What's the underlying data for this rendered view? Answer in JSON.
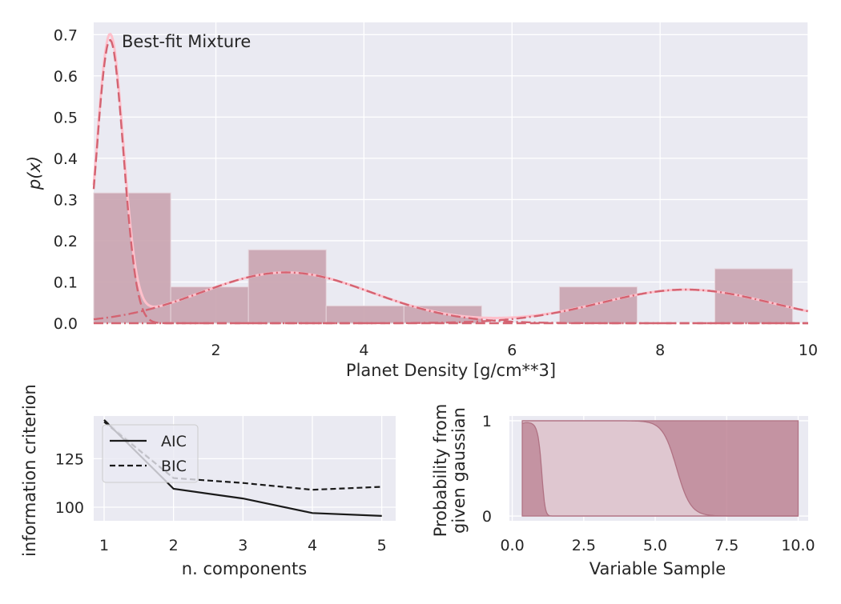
{
  "colors": {
    "background": "#EAEAF2",
    "grid": "#FFFFFF",
    "hist_fill": "#C9A3AF",
    "curve_red": "#D46371",
    "curve_pink": "#FFC0CB",
    "aic_line": "#1A1A1A",
    "bic_line": "#1A1A1A",
    "mixture_line": "#C0C0C0",
    "resp_dark": "#BD8494",
    "resp_light": "#E0C9D3"
  },
  "chart_data": [
    {
      "type": "bar",
      "name": "top",
      "annotation": "Best-fit Mixture",
      "xlabel": "Planet Density [g/cm**3]",
      "ylabel": "p(x)",
      "xlim": [
        0.35,
        10
      ],
      "ylim": [
        0,
        0.72
      ],
      "xticks": [
        "2",
        "4",
        "6",
        "8",
        "10"
      ],
      "yticks": [
        "0.0",
        "0.1",
        "0.2",
        "0.3",
        "0.4",
        "0.5",
        "0.6",
        "0.7"
      ],
      "grid": true,
      "histogram": {
        "bin_edges": [
          0.35,
          1.39,
          2.44,
          3.49,
          4.54,
          5.59,
          6.64,
          7.69,
          8.74,
          9.79
        ],
        "values": [
          0.316,
          0.088,
          0.178,
          0.042,
          0.042,
          0.0,
          0.088,
          0.0,
          0.132
        ]
      },
      "components": [
        {
          "mean": 0.57,
          "sigma": 0.18,
          "weight": 0.31
        },
        {
          "mean": 2.95,
          "sigma": 1.15,
          "weight": 0.355
        },
        {
          "mean": 8.35,
          "sigma": 1.15,
          "weight": 0.235
        }
      ]
    },
    {
      "type": "line",
      "name": "bottom-left",
      "xlabel": "n. components",
      "ylabel": "information criterion",
      "xlim": [
        0.85,
        5.2
      ],
      "ylim": [
        93,
        147
      ],
      "xticks": [
        "1",
        "2",
        "3",
        "4",
        "5"
      ],
      "yticks": [
        "100",
        "125"
      ],
      "grid": true,
      "legend_position": "top-left",
      "x": [
        1,
        2,
        3,
        4,
        5
      ],
      "series": [
        {
          "name": "AIC",
          "values": [
            145,
            109.5,
            104.5,
            97,
            95.5
          ]
        },
        {
          "name": "BIC",
          "values": [
            144,
            115,
            112.5,
            109,
            110.5
          ]
        }
      ]
    },
    {
      "type": "area",
      "name": "bottom-right",
      "xlabel": "Variable Sample",
      "ylabel": "Probability from given gaussian",
      "ylabel_lines": [
        "Probability from",
        "given gaussian"
      ],
      "xlim": [
        -0.1,
        10.35
      ],
      "ylim": [
        -0.05,
        1.05
      ],
      "xticks": [
        "0.0",
        "2.5",
        "5.0",
        "7.5",
        "10.0"
      ],
      "yticks": [
        "0",
        "1"
      ],
      "grid": true,
      "x_range": [
        0.35,
        10.0
      ]
    }
  ]
}
